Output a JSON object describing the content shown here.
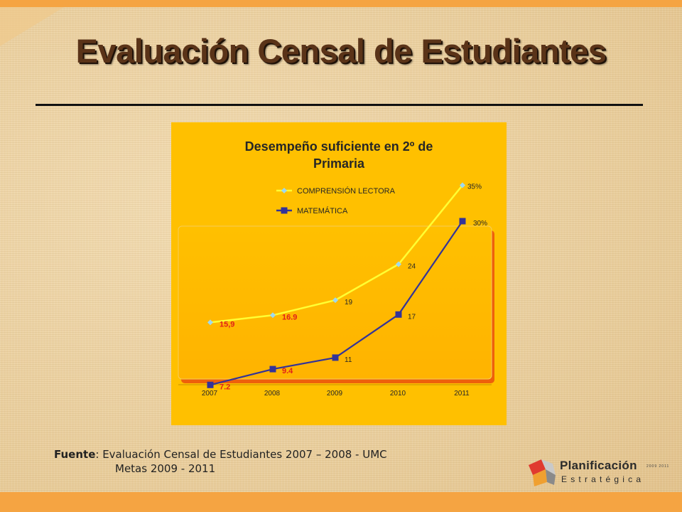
{
  "slide": {
    "title": "Evaluación Censal de Estudiantes",
    "source_label": "Fuente",
    "source_line1": ": Evaluación Censal de Estudiantes 2007 – 2008  - UMC",
    "source_line2": "Metas 2009 - 2011",
    "logo": {
      "name_line1": "Planificación",
      "name_line2": "Estratégica",
      "years": "2009 2011"
    }
  },
  "colors": {
    "background": "#ecd3a6",
    "accent_bar": "#f5a442",
    "chart_background": "#ffc000",
    "comprension": "#ffff33",
    "matematica": "#333399",
    "highlight_label": "#e0201a"
  },
  "chart_data": {
    "type": "line",
    "title": "Desempeño suficiente en 2º de Primaria",
    "categories": [
      "2007",
      "2008",
      "2009",
      "2010",
      "2011"
    ],
    "series": [
      {
        "name": "COMPRENSIÓN LECTORA",
        "values": [
          15.9,
          16.9,
          19,
          24,
          35
        ],
        "labels": [
          "15,9",
          "16.9",
          "19",
          "24",
          "35%"
        ],
        "marker": "diamond"
      },
      {
        "name": "MATEMÁTICA",
        "values": [
          7.2,
          9.4,
          11,
          17,
          30
        ],
        "labels": [
          "7.2",
          "9.4",
          "11",
          "17",
          "30%"
        ],
        "marker": "square"
      }
    ],
    "ylim": [
      0,
      40
    ],
    "legend": "top",
    "grid": false
  }
}
